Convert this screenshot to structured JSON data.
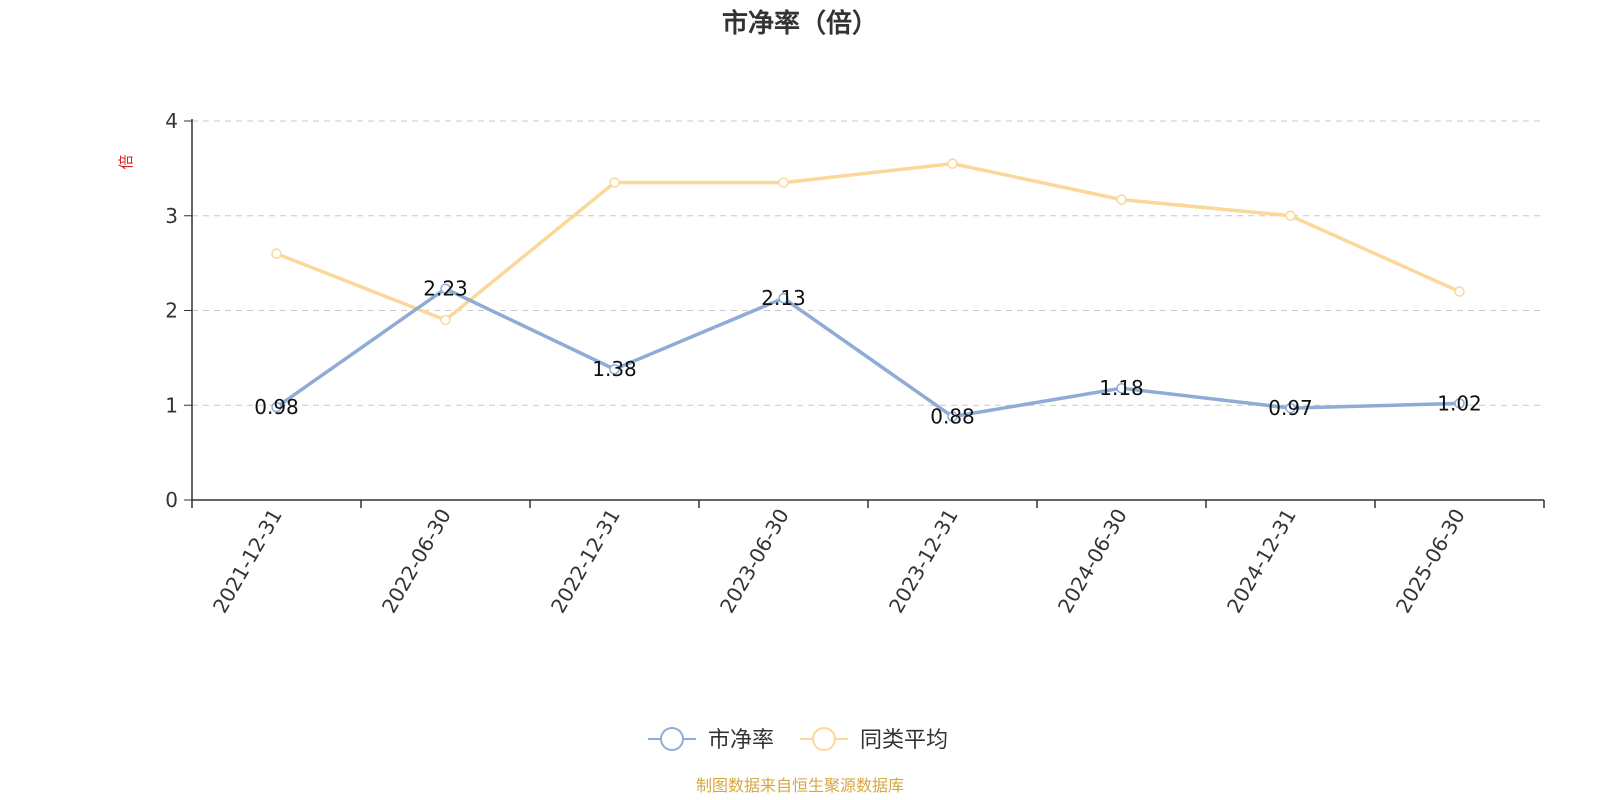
{
  "chart_data": {
    "type": "line",
    "title": "市净率（倍）",
    "unit_label": "倍",
    "categories": [
      "2021-12-31",
      "2022-06-30",
      "2022-12-31",
      "2023-06-30",
      "2023-12-31",
      "2024-06-30",
      "2024-12-31",
      "2025-06-30"
    ],
    "ylim": [
      0,
      4
    ],
    "yticks": [
      "0",
      "1",
      "2",
      "3",
      "4"
    ],
    "grid": true,
    "legend_position": "bottom-center",
    "series": [
      {
        "name": "市净率",
        "color": "#8eacd6",
        "values": [
          0.98,
          2.23,
          1.38,
          2.13,
          0.88,
          1.18,
          0.97,
          1.02
        ],
        "labels": [
          "0.98",
          "2.23",
          "1.38",
          "2.13",
          "0.88",
          "1.18",
          "0.97",
          "1.02"
        ]
      },
      {
        "name": "同类平均",
        "color": "#fbd89a",
        "values": [
          2.6,
          1.9,
          3.35,
          3.35,
          3.55,
          3.17,
          3.0,
          2.2
        ]
      }
    ],
    "source": "制图数据来自恒生聚源数据库",
    "source_color": "#d4a843"
  }
}
